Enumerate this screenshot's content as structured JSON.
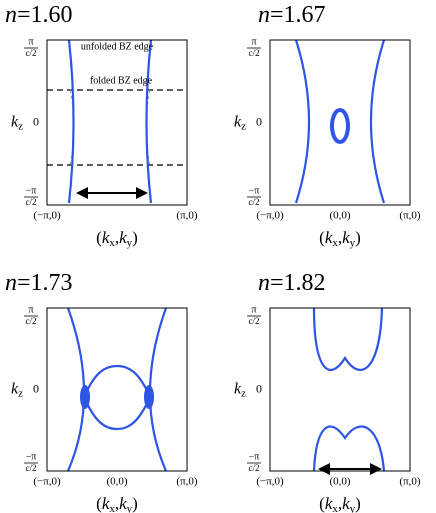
{
  "panels": [
    {
      "title": {
        "var": "n",
        "value": "=1.60"
      },
      "y_top": {
        "num": "π",
        "den": "c/2"
      },
      "y_zero": "0",
      "y_label": {
        "base": "k",
        "sub": "z"
      },
      "y_bottom": {
        "num": "−π",
        "den": "c/2"
      },
      "x_ticks": [
        "(−π,0)",
        "(π,0)"
      ],
      "x_label": [
        "(",
        "k",
        "x",
        ",",
        "k",
        "y",
        ")"
      ],
      "annotations": [
        "unfolded BZ edge",
        "folded BZ edge"
      ]
    },
    {
      "title": {
        "var": "n",
        "value": "=1.67"
      },
      "y_top": {
        "num": "π",
        "den": "c/2"
      },
      "y_zero": "0",
      "y_label": {
        "base": "k",
        "sub": "z"
      },
      "y_bottom": {
        "num": "−π",
        "den": "c/2"
      },
      "x_ticks": [
        "(−π,0)",
        "(0,0)",
        "(π,0)"
      ],
      "x_label": [
        "(",
        "k",
        "x",
        ",",
        "k",
        "y",
        ")"
      ]
    },
    {
      "title": {
        "var": "n",
        "value": "=1.73"
      },
      "y_top": {
        "num": "π",
        "den": "c/2"
      },
      "y_zero": "0",
      "y_label": {
        "base": "k",
        "sub": "z"
      },
      "y_bottom": {
        "num": "−π",
        "den": "c/2"
      },
      "x_ticks": [
        "(−π,0)",
        "(0,0)",
        "(π,0)"
      ],
      "x_label": [
        "(",
        "k",
        "x",
        ",",
        "k",
        "y",
        ")"
      ]
    },
    {
      "title": {
        "var": "n",
        "value": "=1.82"
      },
      "y_top": {
        "num": "π",
        "den": "c/2"
      },
      "y_zero": "0",
      "y_label": {
        "base": "k",
        "sub": "z"
      },
      "y_bottom": {
        "num": "−π",
        "den": "c/2"
      },
      "x_ticks": [
        "(−π,0)",
        "(0,0)",
        "(π,0)"
      ],
      "x_label": [
        "(",
        "k",
        "x",
        ",",
        "k",
        "y",
        ")"
      ]
    }
  ]
}
